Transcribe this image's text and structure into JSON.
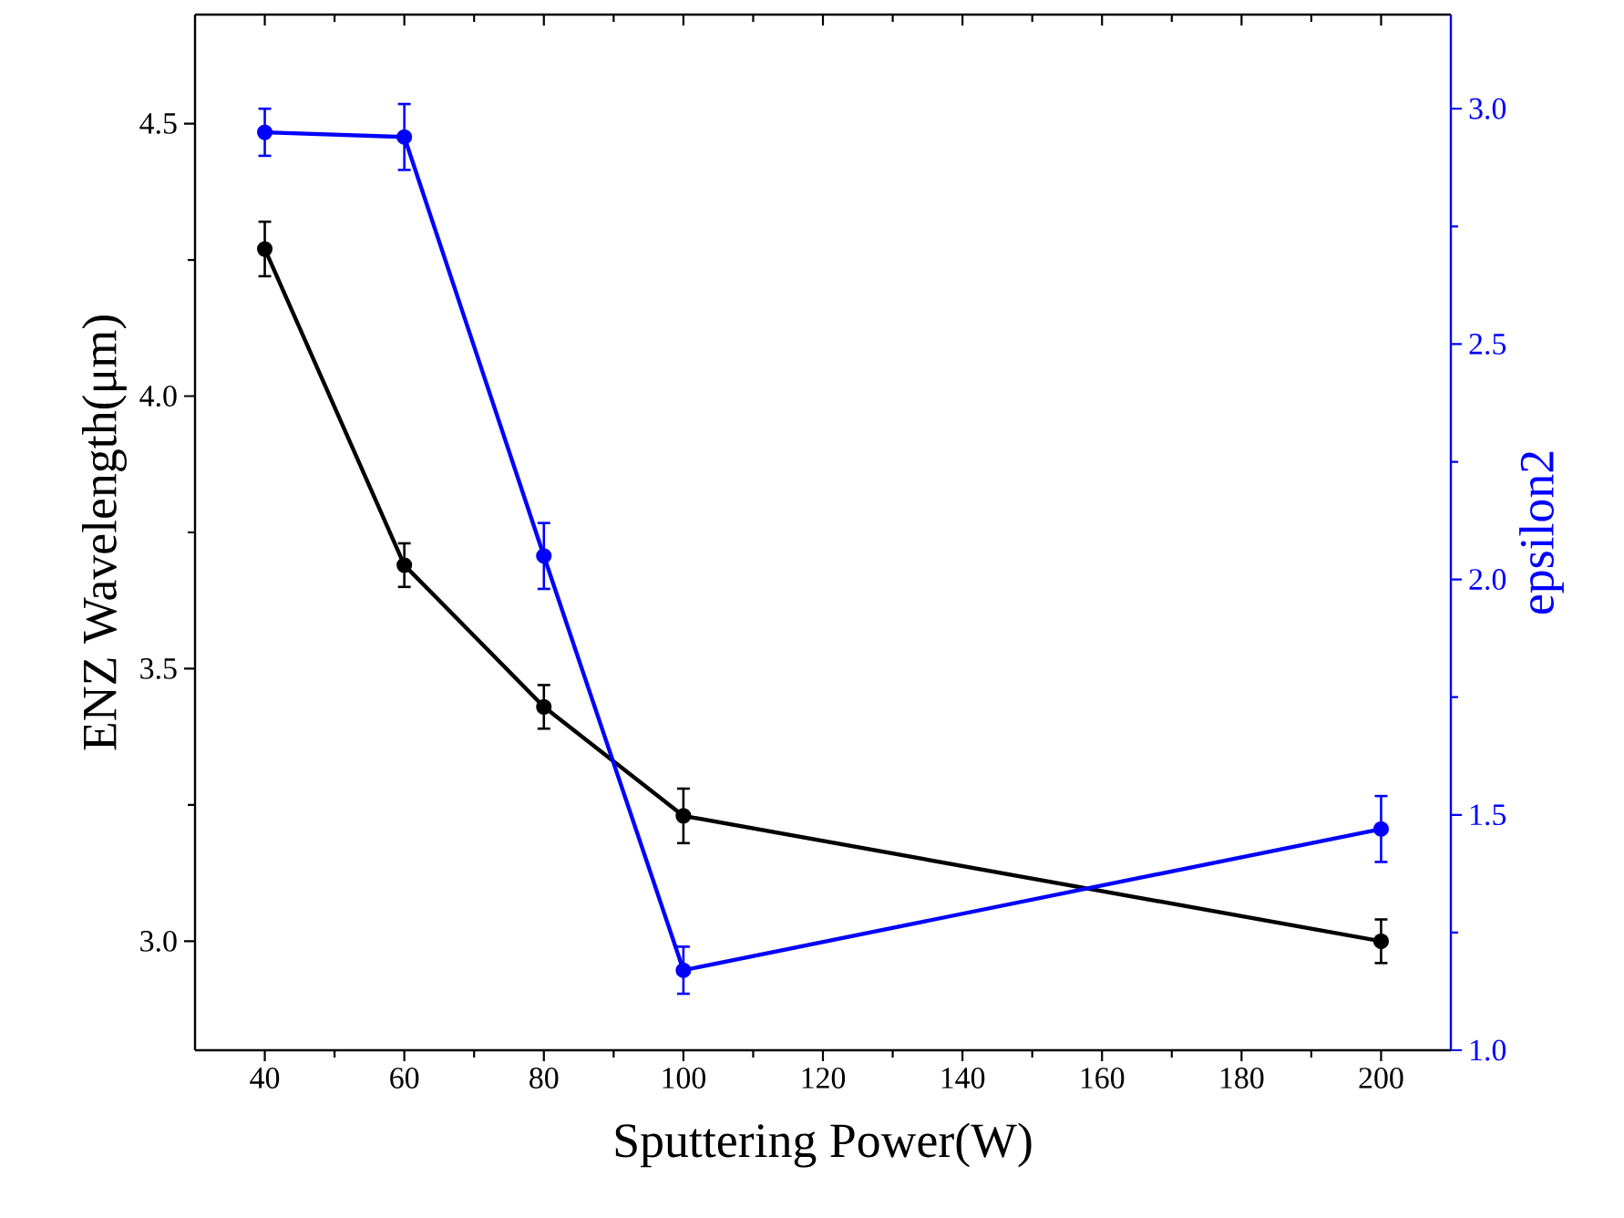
{
  "chart_data": {
    "type": "line",
    "xlabel": "Sputtering Power(W)",
    "ylabel": "ENZ Wavelength(μm)",
    "y2label": "epsilon2",
    "x": [
      40,
      60,
      80,
      100,
      200
    ],
    "xlim": [
      30,
      210
    ],
    "xticks": [
      40,
      60,
      80,
      100,
      120,
      140,
      160,
      180,
      200
    ],
    "ylim": [
      2.8,
      4.7
    ],
    "yticks": [
      {
        "value": 3,
        "label": "3.0"
      },
      {
        "value": 3.5,
        "label": "3.5"
      },
      {
        "value": 4,
        "label": "4.0"
      },
      {
        "value": 4.5,
        "label": "4.5"
      }
    ],
    "y2lim": [
      1.0,
      3.2
    ],
    "y2ticks": [
      {
        "value": 1,
        "label": "1.0"
      },
      {
        "value": 1.5,
        "label": "1.5"
      },
      {
        "value": 2,
        "label": "2.0"
      },
      {
        "value": 2.5,
        "label": "2.5"
      },
      {
        "value": 3,
        "label": "3.0"
      }
    ],
    "marker": "circle",
    "line_style": "solid",
    "series": [
      {
        "color": "#000000",
        "values": [
          4.27,
          3.69,
          3.43,
          3.23,
          3.0
        ],
        "errors": [
          0.05,
          0.04,
          0.04,
          0.05,
          0.04
        ]
      },
      {
        "color": "#0000ff",
        "axis": "y2",
        "values": [
          2.95,
          2.94,
          2.05,
          1.17,
          1.47
        ],
        "errors": [
          0.05,
          0.07,
          0.07,
          0.05,
          0.07
        ]
      }
    ]
  }
}
